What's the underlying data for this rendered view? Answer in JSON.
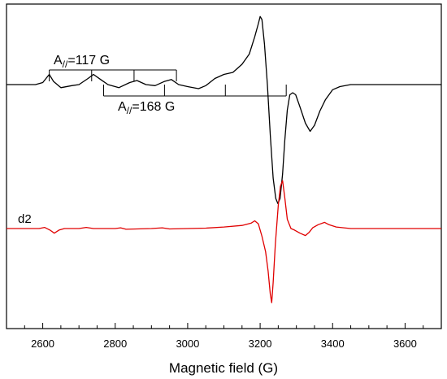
{
  "chart_data": {
    "type": "line",
    "title": "",
    "xlabel": "Magnetic field (G)",
    "ylabel": "",
    "xlim": [
      2500,
      3700
    ],
    "xticks": [
      2600,
      2800,
      3000,
      3200,
      3400,
      3600
    ],
    "grid": false,
    "series": [
      {
        "color": "#000000",
        "points": [
          [
            2500,
            0.0
          ],
          [
            2580,
            0.0
          ],
          [
            2600,
            0.02
          ],
          [
            2618,
            0.1
          ],
          [
            2630,
            0.03
          ],
          [
            2650,
            -0.03
          ],
          [
            2680,
            -0.01
          ],
          [
            2700,
            0.0
          ],
          [
            2725,
            0.06
          ],
          [
            2740,
            0.1
          ],
          [
            2760,
            0.05
          ],
          [
            2780,
            0.0
          ],
          [
            2810,
            -0.03
          ],
          [
            2840,
            0.02
          ],
          [
            2860,
            0.04
          ],
          [
            2885,
            0.0
          ],
          [
            2910,
            -0.01
          ],
          [
            2935,
            0.03
          ],
          [
            2955,
            0.05
          ],
          [
            2975,
            0.0
          ],
          [
            3000,
            -0.02
          ],
          [
            3030,
            -0.04
          ],
          [
            3050,
            -0.01
          ],
          [
            3075,
            0.06
          ],
          [
            3100,
            0.1
          ],
          [
            3125,
            0.12
          ],
          [
            3150,
            0.2
          ],
          [
            3170,
            0.3
          ],
          [
            3185,
            0.47
          ],
          [
            3195,
            0.6
          ],
          [
            3200,
            0.67
          ],
          [
            3205,
            0.64
          ],
          [
            3212,
            0.4
          ],
          [
            3220,
            0.0
          ],
          [
            3228,
            -0.5
          ],
          [
            3236,
            -0.92
          ],
          [
            3243,
            -1.12
          ],
          [
            3249,
            -1.17
          ],
          [
            3255,
            -1.12
          ],
          [
            3262,
            -0.88
          ],
          [
            3268,
            -0.55
          ],
          [
            3275,
            -0.25
          ],
          [
            3282,
            -0.1
          ],
          [
            3290,
            -0.08
          ],
          [
            3298,
            -0.1
          ],
          [
            3310,
            -0.22
          ],
          [
            3325,
            -0.38
          ],
          [
            3338,
            -0.46
          ],
          [
            3350,
            -0.4
          ],
          [
            3365,
            -0.26
          ],
          [
            3380,
            -0.15
          ],
          [
            3400,
            -0.05
          ],
          [
            3420,
            -0.02
          ],
          [
            3450,
            0.0
          ],
          [
            3700,
            0.0
          ]
        ]
      },
      {
        "color": "#e00000",
        "points": [
          [
            2500,
            0.0
          ],
          [
            2590,
            0.0
          ],
          [
            2605,
            0.015
          ],
          [
            2620,
            -0.02
          ],
          [
            2632,
            -0.06
          ],
          [
            2645,
            -0.02
          ],
          [
            2660,
            0.0
          ],
          [
            2700,
            0.0
          ],
          [
            2720,
            0.015
          ],
          [
            2740,
            0.0
          ],
          [
            2800,
            0.0
          ],
          [
            2815,
            0.01
          ],
          [
            2830,
            -0.01
          ],
          [
            2900,
            0.0
          ],
          [
            2930,
            0.01
          ],
          [
            2950,
            -0.005
          ],
          [
            3000,
            0.0
          ],
          [
            3050,
            0.005
          ],
          [
            3100,
            0.02
          ],
          [
            3150,
            0.04
          ],
          [
            3175,
            0.07
          ],
          [
            3185,
            0.1
          ],
          [
            3195,
            0.06
          ],
          [
            3205,
            -0.1
          ],
          [
            3215,
            -0.3
          ],
          [
            3222,
            -0.55
          ],
          [
            3228,
            -0.85
          ],
          [
            3232,
            -0.96
          ],
          [
            3236,
            -0.7
          ],
          [
            3242,
            -0.2
          ],
          [
            3250,
            0.3
          ],
          [
            3256,
            0.55
          ],
          [
            3262,
            0.62
          ],
          [
            3268,
            0.4
          ],
          [
            3275,
            0.12
          ],
          [
            3285,
            0.0
          ],
          [
            3295,
            -0.02
          ],
          [
            3310,
            -0.06
          ],
          [
            3325,
            -0.09
          ],
          [
            3335,
            -0.05
          ],
          [
            3345,
            0.01
          ],
          [
            3360,
            0.05
          ],
          [
            3378,
            0.08
          ],
          [
            3390,
            0.05
          ],
          [
            3410,
            0.02
          ],
          [
            3450,
            0.0
          ],
          [
            3700,
            0.0
          ]
        ]
      }
    ],
    "annotations": {
      "series_label": "d2",
      "a_perp_label": "A//=117 G",
      "a_par_label": "A//=168 G",
      "hyperfine_117_ticks": [
        2618,
        2735,
        2852,
        2969
      ],
      "hyperfine_168_ticks": [
        2768,
        2936,
        3104,
        3272
      ]
    }
  }
}
